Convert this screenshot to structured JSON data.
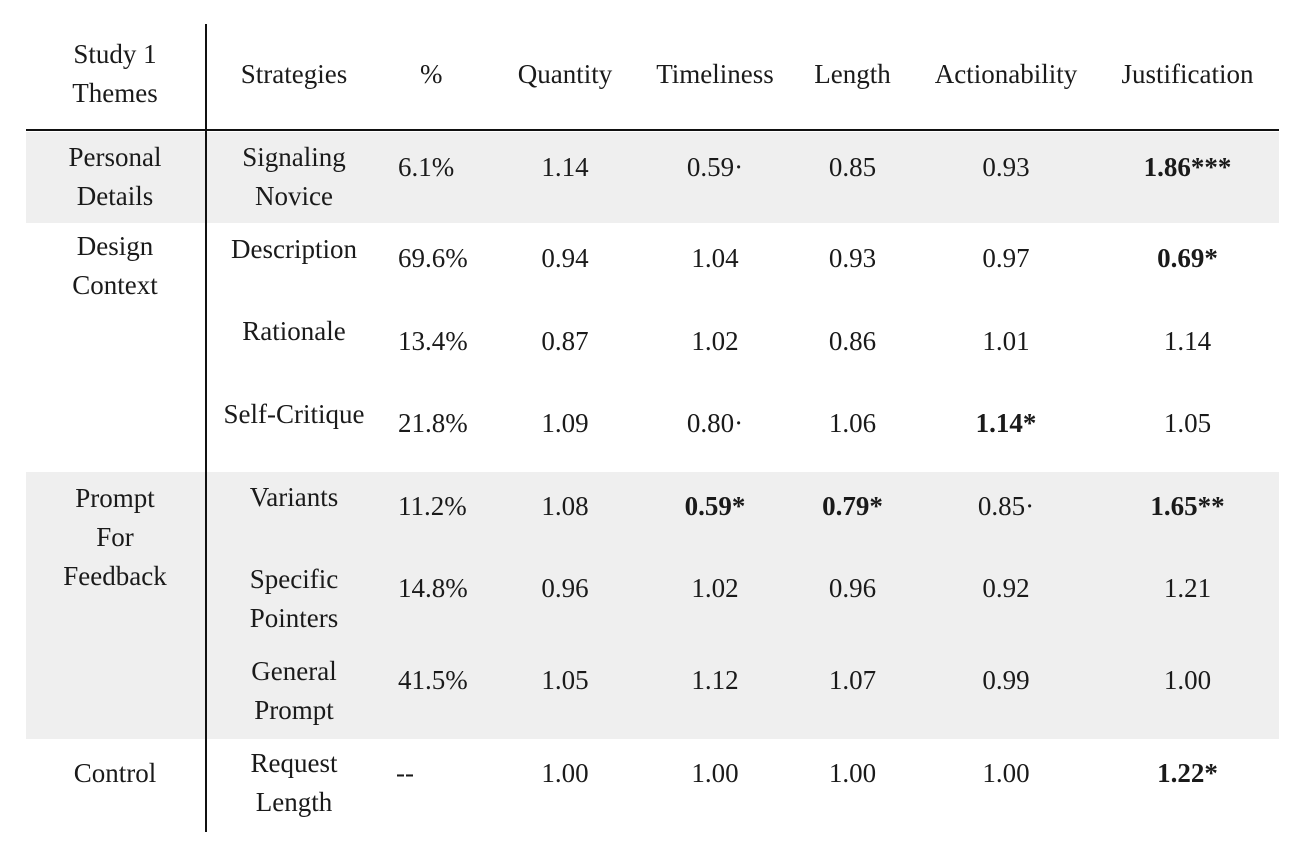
{
  "header": {
    "themes": "Study 1 Themes",
    "themes_line1": "Study 1",
    "themes_line2": "Themes",
    "strategies": "Strategies",
    "percent": "%",
    "quantity": "Quantity",
    "timeliness": "Timeliness",
    "length": "Length",
    "actionability": "Actionability",
    "justification": "Justification"
  },
  "themes": {
    "personal_1": "Personal",
    "personal_2": "Details",
    "design_1": "Design",
    "design_2": "Context",
    "prompt_1": "Prompt",
    "prompt_2": "For",
    "prompt_3": "Feedback",
    "control": "Control"
  },
  "rows": [
    {
      "strategy_1": "Signaling",
      "strategy_2": "Novice",
      "pct": "6.1%",
      "quantity": "1.14",
      "timeliness": "0.59·",
      "length": "0.85",
      "actionability": "0.93",
      "justification": "1.86***",
      "bold": [
        "justification"
      ]
    },
    {
      "strategy_1": "Description",
      "strategy_2": "",
      "pct": "69.6%",
      "quantity": "0.94",
      "timeliness": "1.04",
      "length": "0.93",
      "actionability": "0.97",
      "justification": "0.69*",
      "bold": [
        "justification"
      ]
    },
    {
      "strategy_1": "Rationale",
      "strategy_2": "",
      "pct": "13.4%",
      "quantity": "0.87",
      "timeliness": "1.02",
      "length": "0.86",
      "actionability": "1.01",
      "justification": "1.14",
      "bold": []
    },
    {
      "strategy_1": "Self-Critique",
      "strategy_2": "",
      "pct": "21.8%",
      "quantity": "1.09",
      "timeliness": "0.80·",
      "length": "1.06",
      "actionability": "1.14*",
      "justification": "1.05",
      "bold": [
        "actionability"
      ]
    },
    {
      "strategy_1": "Variants",
      "strategy_2": "",
      "pct": "11.2%",
      "quantity": "1.08",
      "timeliness": "0.59*",
      "length": "0.79*",
      "actionability": "0.85·",
      "justification": "1.65**",
      "bold": [
        "timeliness",
        "length",
        "justification"
      ]
    },
    {
      "strategy_1": "Specific",
      "strategy_2": "Pointers",
      "pct": "14.8%",
      "quantity": "0.96",
      "timeliness": "1.02",
      "length": "0.96",
      "actionability": "0.92",
      "justification": "1.21",
      "bold": []
    },
    {
      "strategy_1": "General",
      "strategy_2": "Prompt",
      "pct": "41.5%",
      "quantity": "1.05",
      "timeliness": "1.12",
      "length": "1.07",
      "actionability": "0.99",
      "justification": "1.00",
      "bold": []
    },
    {
      "strategy_1": "Request",
      "strategy_2": "Length",
      "pct": "--",
      "quantity": "1.00",
      "timeliness": "1.00",
      "length": "1.00",
      "actionability": "1.00",
      "justification": "1.22*",
      "bold": [
        "justification"
      ]
    }
  ]
}
